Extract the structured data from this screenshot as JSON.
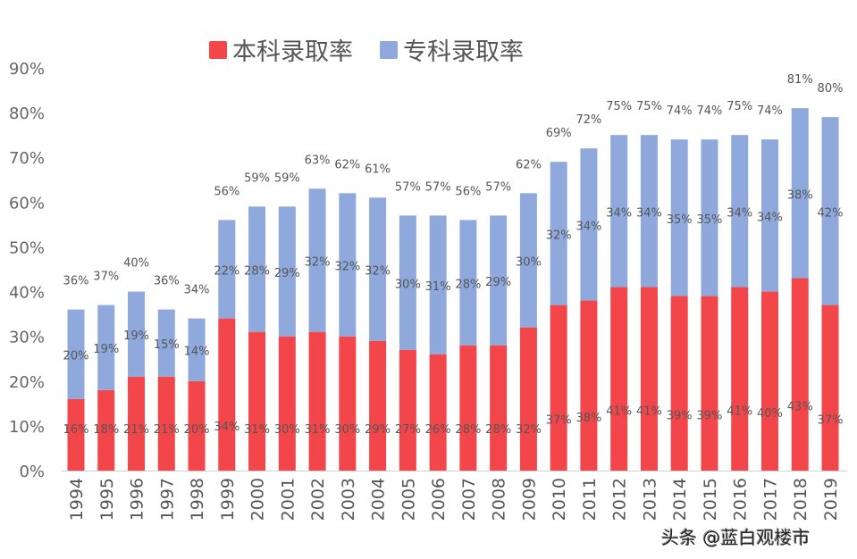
{
  "chart_data": {
    "type": "bar",
    "stacked": true,
    "categories": [
      "1994",
      "1995",
      "1996",
      "1997",
      "1998",
      "1999",
      "2000",
      "2001",
      "2002",
      "2003",
      "2004",
      "2005",
      "2006",
      "2007",
      "2008",
      "2009",
      "2010",
      "2011",
      "2012",
      "2013",
      "2014",
      "2015",
      "2016",
      "2017",
      "2018",
      "2019"
    ],
    "series": [
      {
        "name": "本科录取率",
        "color": "#f2464b",
        "values": [
          16,
          18,
          21,
          21,
          20,
          34,
          31,
          30,
          31,
          30,
          29,
          27,
          26,
          28,
          28,
          32,
          37,
          38,
          41,
          41,
          39,
          39,
          41,
          40,
          43,
          37
        ]
      },
      {
        "name": "专科录取率",
        "color": "#8fa9dc",
        "values": [
          20,
          19,
          19,
          15,
          14,
          22,
          28,
          29,
          32,
          32,
          32,
          30,
          31,
          28,
          29,
          30,
          32,
          34,
          34,
          34,
          35,
          35,
          34,
          34,
          38,
          42
        ]
      }
    ],
    "totals": [
      36,
      37,
      40,
      36,
      34,
      56,
      59,
      59,
      63,
      62,
      61,
      57,
      57,
      56,
      57,
      62,
      69,
      72,
      75,
      75,
      74,
      74,
      75,
      74,
      81,
      80
    ],
    "ylim": [
      0,
      90
    ],
    "yticks": [
      "0%",
      "10%",
      "20%",
      "30%",
      "40%",
      "50%",
      "60%",
      "70%",
      "80%",
      "90%"
    ],
    "value_suffix": "%",
    "legend_position": "top",
    "grid": false,
    "title": "",
    "xlabel": "",
    "ylabel": ""
  },
  "watermark": "头条 @蓝白观楼市"
}
